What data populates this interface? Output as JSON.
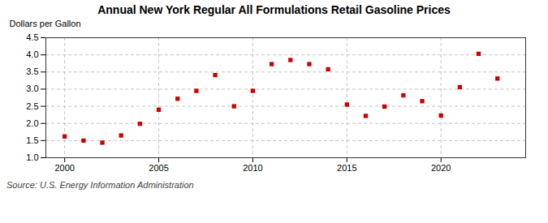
{
  "chart_data": {
    "type": "scatter",
    "title": "Annual New York Regular All Formulations Retail Gasoline Prices",
    "ylabel": "Dollars per Gallon",
    "source": "Source: U.S. Energy Information Administration",
    "x": [
      2000,
      2001,
      2002,
      2003,
      2004,
      2005,
      2006,
      2007,
      2008,
      2009,
      2010,
      2011,
      2012,
      2013,
      2014,
      2015,
      2016,
      2017,
      2018,
      2019,
      2020,
      2021,
      2022,
      2023
    ],
    "values": [
      1.62,
      1.5,
      1.44,
      1.65,
      1.99,
      2.4,
      2.72,
      2.95,
      3.41,
      2.5,
      2.95,
      3.73,
      3.85,
      3.73,
      3.58,
      2.55,
      2.22,
      2.49,
      2.82,
      2.65,
      2.23,
      3.06,
      4.03,
      3.31
    ],
    "color": "#cc0000",
    "marker": "square",
    "xlim": [
      1999,
      2024.5
    ],
    "xticks": [
      2000,
      2005,
      2010,
      2015,
      2020
    ],
    "ylim": [
      1.0,
      4.5
    ],
    "yticks": [
      {
        "value": 1.0,
        "label": "1.0"
      },
      1.5,
      {
        "value": 2.0,
        "label": "2.0"
      },
      2.5,
      {
        "value": 3.0,
        "label": "3.0"
      },
      3.5,
      {
        "value": 4.0,
        "label": "4.0"
      },
      4.5
    ],
    "grid": true
  }
}
